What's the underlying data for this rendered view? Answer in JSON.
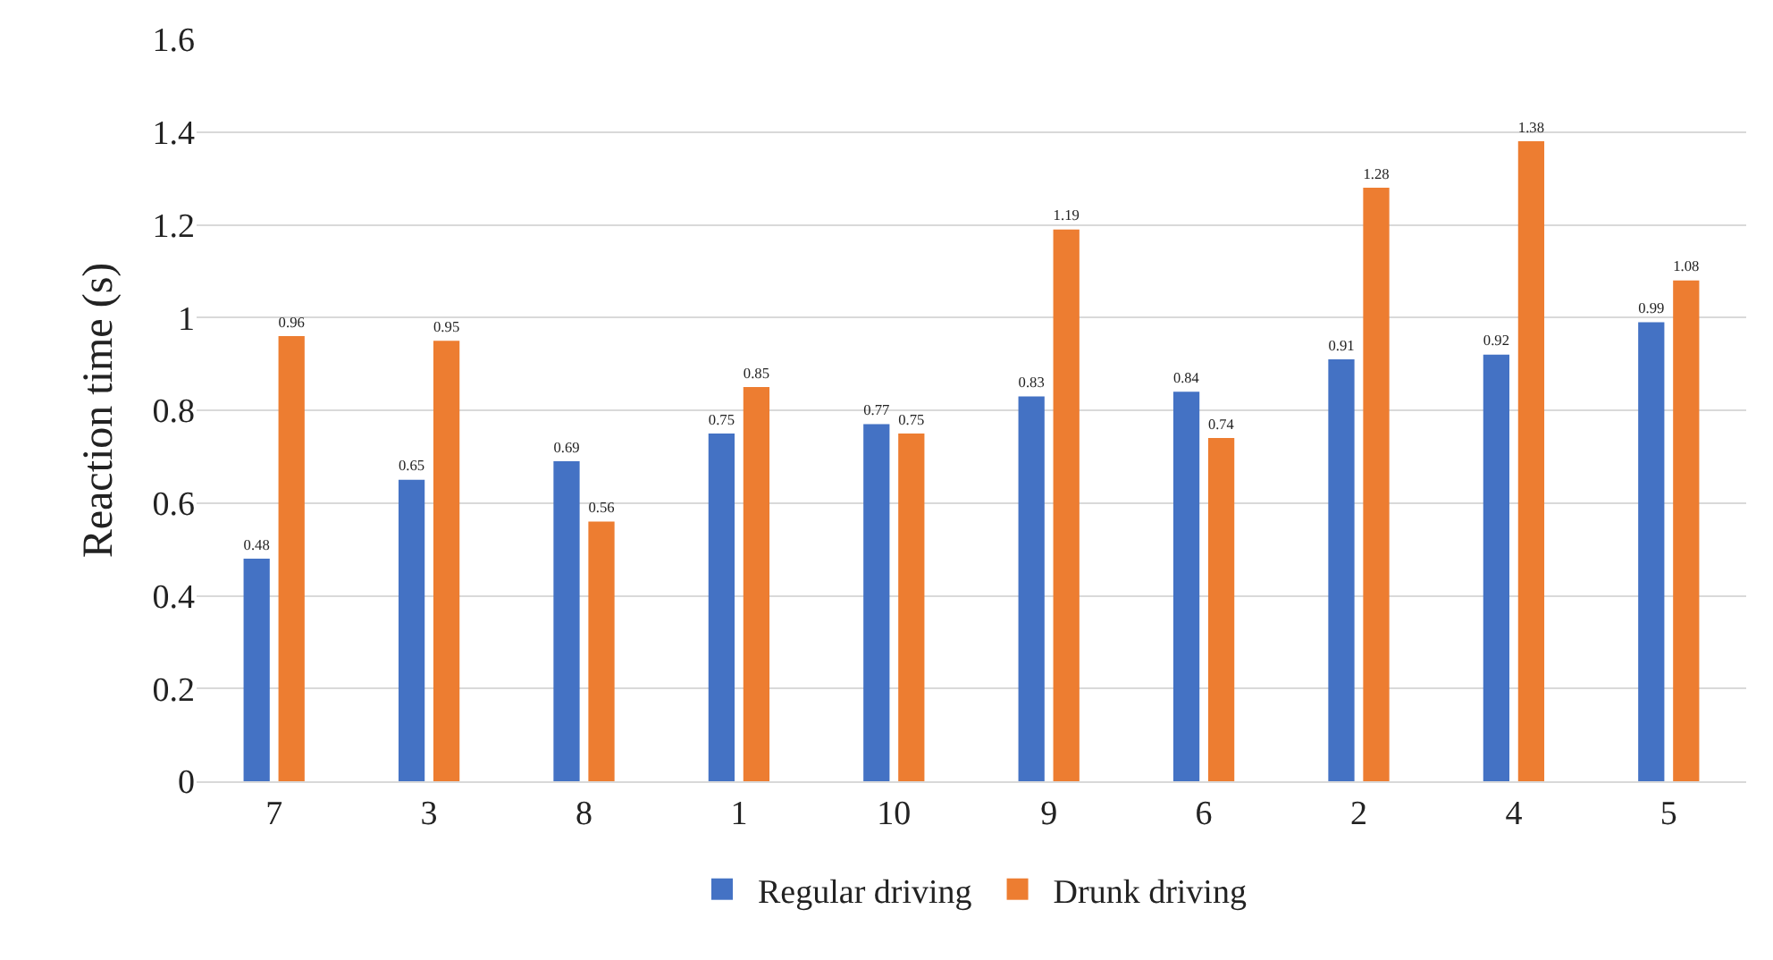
{
  "chart_data": {
    "type": "bar",
    "ylabel": "Reaction time (s)",
    "categories": [
      "7",
      "3",
      "8",
      "1",
      "10",
      "9",
      "6",
      "2",
      "4",
      "5"
    ],
    "series": [
      {
        "name": "Regular driving",
        "color": "#4472c4",
        "values": [
          0.48,
          0.65,
          0.69,
          0.75,
          0.77,
          0.83,
          0.84,
          0.91,
          0.92,
          0.99
        ]
      },
      {
        "name": "Drunk driving",
        "color": "#ed7d31",
        "values": [
          0.96,
          0.95,
          0.56,
          0.85,
          0.75,
          1.19,
          0.74,
          1.28,
          1.38,
          1.08
        ]
      }
    ],
    "ylim": [
      0,
      1.6
    ],
    "yticks": [
      0,
      0.2,
      0.4,
      0.6,
      0.8,
      1,
      1.2,
      1.4,
      1.6
    ],
    "grid": "y",
    "legend": "bottom",
    "data_labels": true
  }
}
